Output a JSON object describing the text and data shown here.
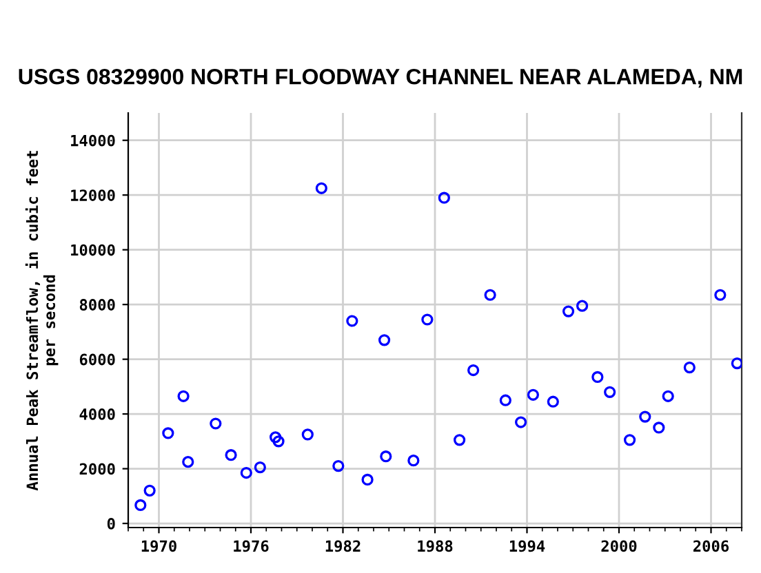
{
  "chart_data": {
    "type": "scatter",
    "title": "USGS 08329900 NORTH FLOODWAY CHANNEL NEAR ALAMEDA, NM",
    "ylabel": "Annual Peak Streamflow, in cubic feet\nper second",
    "x": [
      1968.8,
      1969.4,
      1970.6,
      1971.6,
      1971.9,
      1973.7,
      1974.7,
      1975.7,
      1976.6,
      1977.6,
      1977.8,
      1979.7,
      1980.6,
      1981.7,
      1982.6,
      1983.6,
      1984.7,
      1984.8,
      1986.6,
      1987.5,
      1988.6,
      1989.6,
      1990.5,
      1991.6,
      1992.6,
      1993.6,
      1994.4,
      1995.7,
      1996.7,
      1997.6,
      1998.6,
      1999.4,
      2000.7,
      2001.7,
      2002.6,
      2003.2,
      2004.6,
      2006.6,
      2007.7
    ],
    "values": [
      670,
      1200,
      3300,
      4650,
      2250,
      3650,
      2500,
      1850,
      2050,
      3150,
      3000,
      3250,
      12250,
      2100,
      7400,
      1600,
      6700,
      2450,
      2300,
      7450,
      11900,
      3050,
      5600,
      8350,
      4500,
      3700,
      4700,
      4450,
      7750,
      7950,
      5350,
      4800,
      3050,
      3900,
      3500,
      4650,
      5700,
      8350,
      5850
    ],
    "color": "#0000ff",
    "marker": "circle",
    "grid": true,
    "xlim": [
      1968,
      2008
    ],
    "xticks": [
      1970,
      1976,
      1982,
      1988,
      1994,
      2000,
      2006
    ],
    "ylim": [
      -150,
      15000
    ],
    "yticks": [
      0,
      2000,
      4000,
      6000,
      8000,
      10000,
      12000,
      14000
    ]
  }
}
